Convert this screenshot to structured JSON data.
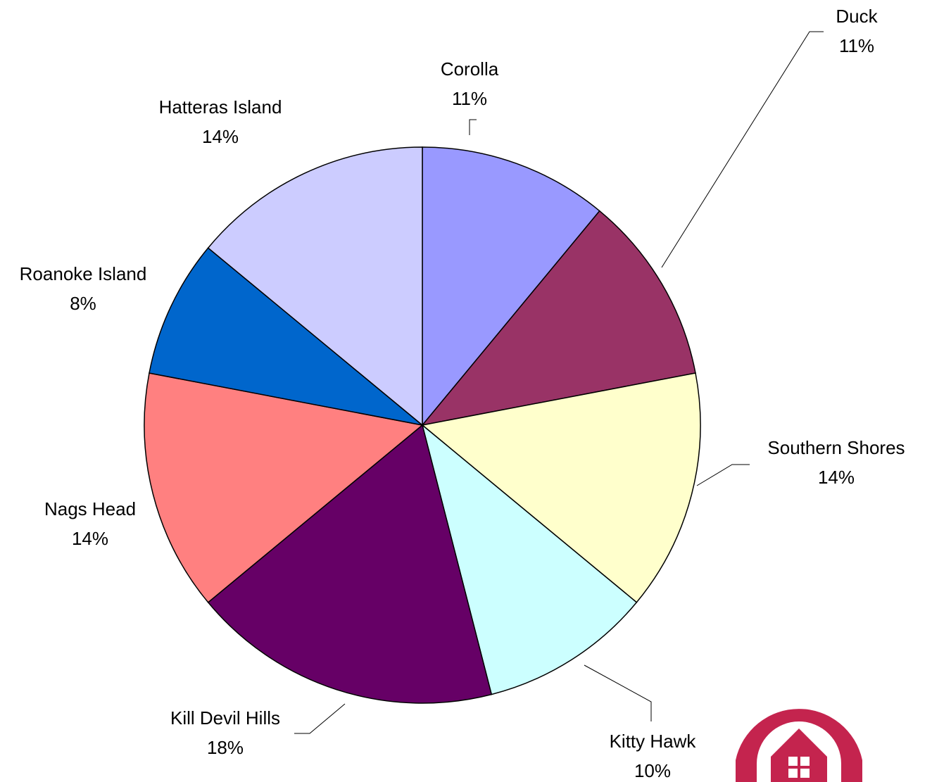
{
  "chart_data": {
    "type": "pie",
    "categories": [
      "Corolla",
      "Duck",
      "Southern Shores",
      "Kitty Hawk",
      "Kill Devil Hills",
      "Nags Head",
      "Roanoke Island",
      "Hatteras Island"
    ],
    "values": [
      11,
      11,
      14,
      10,
      18,
      14,
      8,
      14
    ],
    "value_labels": [
      "11%",
      "11%",
      "14%",
      "10%",
      "18%",
      "14%",
      "8%",
      "14%"
    ],
    "colors": [
      "#9999ff",
      "#993366",
      "#ffffcc",
      "#ccffff",
      "#660066",
      "#ff8080",
      "#0066cc",
      "#ccccff"
    ]
  }
}
